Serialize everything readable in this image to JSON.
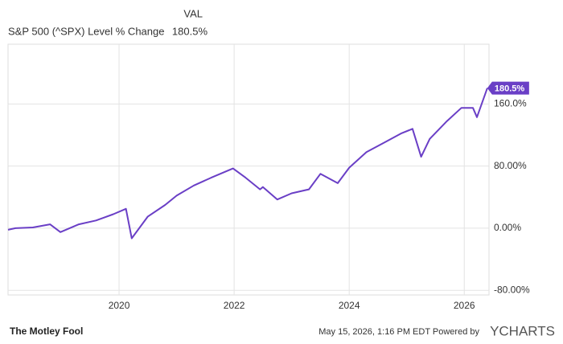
{
  "chart_data": {
    "type": "line",
    "header": {
      "label": "S&P 500 (^SPX) Level % Change",
      "column": "VAL"
    },
    "x": [
      2018.07,
      2018.2,
      2018.5,
      2018.8,
      2018.98,
      2019.3,
      2019.6,
      2019.9,
      2020.12,
      2020.22,
      2020.5,
      2020.8,
      2021.0,
      2021.3,
      2021.6,
      2021.98,
      2022.2,
      2022.45,
      2022.5,
      2022.75,
      2023.0,
      2023.3,
      2023.5,
      2023.8,
      2024.0,
      2024.3,
      2024.6,
      2024.9,
      2025.1,
      2025.25,
      2025.4,
      2025.7,
      2025.95,
      2026.15,
      2026.22,
      2026.4
    ],
    "series": [
      {
        "name": "S&P 500 (^SPX) Level % Change",
        "color": "#6a3fc6",
        "values": [
          -2,
          0,
          1,
          5,
          -5,
          5,
          10,
          18,
          25,
          -13,
          15,
          30,
          42,
          55,
          65,
          77,
          65,
          50,
          53,
          37,
          45,
          50,
          70,
          58,
          78,
          98,
          110,
          122,
          128,
          92,
          115,
          138,
          155,
          155,
          143,
          180.5
        ],
        "last_label": "180.5%"
      }
    ],
    "xlim": [
      2018.07,
      2026.43
    ],
    "xticks": [
      2020,
      2022,
      2024,
      2026
    ],
    "ylim": [
      -86,
      237
    ],
    "yticks": [
      {
        "value": -80,
        "label": "-80.00%"
      },
      {
        "value": 0,
        "label": "0.00%"
      },
      {
        "value": 80,
        "label": "80.00%"
      },
      {
        "value": 160,
        "label": "160.0%"
      }
    ],
    "grid": true,
    "footer": {
      "brand": "The Motley Fool",
      "timestamp": "May 15, 2026, 1:16 PM EDT Powered by",
      "source": "YCHARTS"
    }
  }
}
